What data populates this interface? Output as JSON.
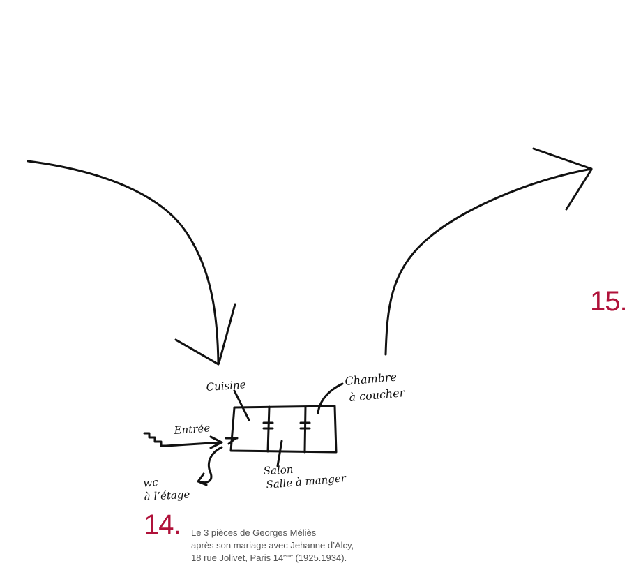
{
  "captions": {
    "fig14": {
      "number": "14.",
      "line1": "Le 3 pièces de Georges Méliès",
      "line2": "après son mariage avec Jehanne d’Alcy,",
      "line3_prefix": "18 rue Jolivet, Paris 14",
      "line3_sup": "eme",
      "line3_suffix": " (1925.1934)."
    },
    "fig15": {
      "number": "15."
    }
  },
  "sketch": {
    "labels": {
      "cuisine": "Cuisine",
      "chambre": "Chambre",
      "a_coucher": "à coucher",
      "entree": "Entrée",
      "salon": "Salon",
      "salle_a_manger": "Salle à manger",
      "wc": "wc",
      "a_letage": "à l’étage"
    }
  },
  "colors": {
    "accent": "#b0123a",
    "ink": "#111111",
    "caption_text": "#555555"
  }
}
